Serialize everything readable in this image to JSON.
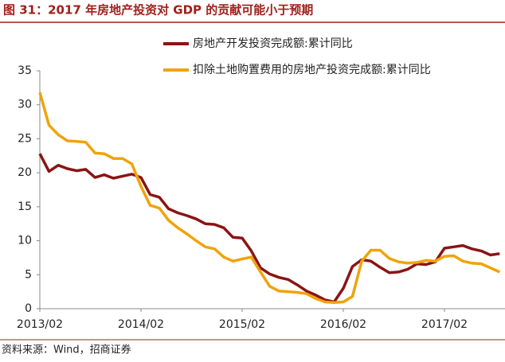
{
  "chart_data": {
    "type": "line",
    "title": "图 31：2017 年房地产投资对 GDP 的贡献可能小于预期",
    "source": "资料来源：Wind，招商证券",
    "categories": [
      "2013/02",
      null,
      null,
      null,
      null,
      null,
      null,
      null,
      null,
      null,
      null,
      "2014/02",
      null,
      null,
      null,
      null,
      null,
      null,
      null,
      null,
      null,
      null,
      "2015/02",
      null,
      null,
      null,
      null,
      null,
      null,
      null,
      null,
      null,
      null,
      "2016/02",
      null,
      null,
      null,
      null,
      null,
      null,
      null,
      null,
      null,
      null,
      "2017/02",
      null,
      null,
      null,
      null,
      null,
      null
    ],
    "series": [
      {
        "name": "房地产开发投资完成额:累计同比",
        "color": "#8b1414",
        "values": [
          22.8,
          20.2,
          21.1,
          20.6,
          20.3,
          20.5,
          19.3,
          19.7,
          19.2,
          19.5,
          19.8,
          19.3,
          16.8,
          16.4,
          14.7,
          14.1,
          13.7,
          13.2,
          12.5,
          12.4,
          11.9,
          10.5,
          10.4,
          8.5,
          6.0,
          5.1,
          4.6,
          4.3,
          3.5,
          2.6,
          2.0,
          1.3,
          1.0,
          3.0,
          6.2,
          7.2,
          7.0,
          6.1,
          5.3,
          5.4,
          5.8,
          6.6,
          6.5,
          6.9,
          8.9,
          9.1,
          9.3,
          8.8,
          8.5,
          7.9,
          8.1
        ]
      },
      {
        "name": "扣除土地购置费用的房地产投资完成额:累计同比",
        "color": "#f0a30a",
        "values": [
          31.8,
          27.0,
          25.6,
          24.7,
          24.6,
          24.5,
          22.9,
          22.8,
          22.1,
          22.1,
          21.3,
          18.0,
          15.2,
          14.8,
          13.0,
          11.9,
          11.0,
          10.0,
          9.1,
          8.8,
          7.6,
          7.0,
          7.3,
          7.6,
          5.4,
          3.3,
          2.6,
          2.5,
          2.4,
          2.2,
          1.5,
          1.0,
          0.9,
          1.0,
          1.8,
          7.0,
          8.6,
          8.6,
          7.4,
          6.9,
          6.7,
          6.8,
          7.1,
          7.0,
          7.7,
          7.8,
          7.0,
          6.7,
          6.6,
          6.0,
          5.4
        ]
      }
    ],
    "ylim": [
      0,
      35
    ],
    "yticks": [
      0,
      5,
      10,
      15,
      20,
      25,
      30,
      35
    ],
    "grid": false
  }
}
